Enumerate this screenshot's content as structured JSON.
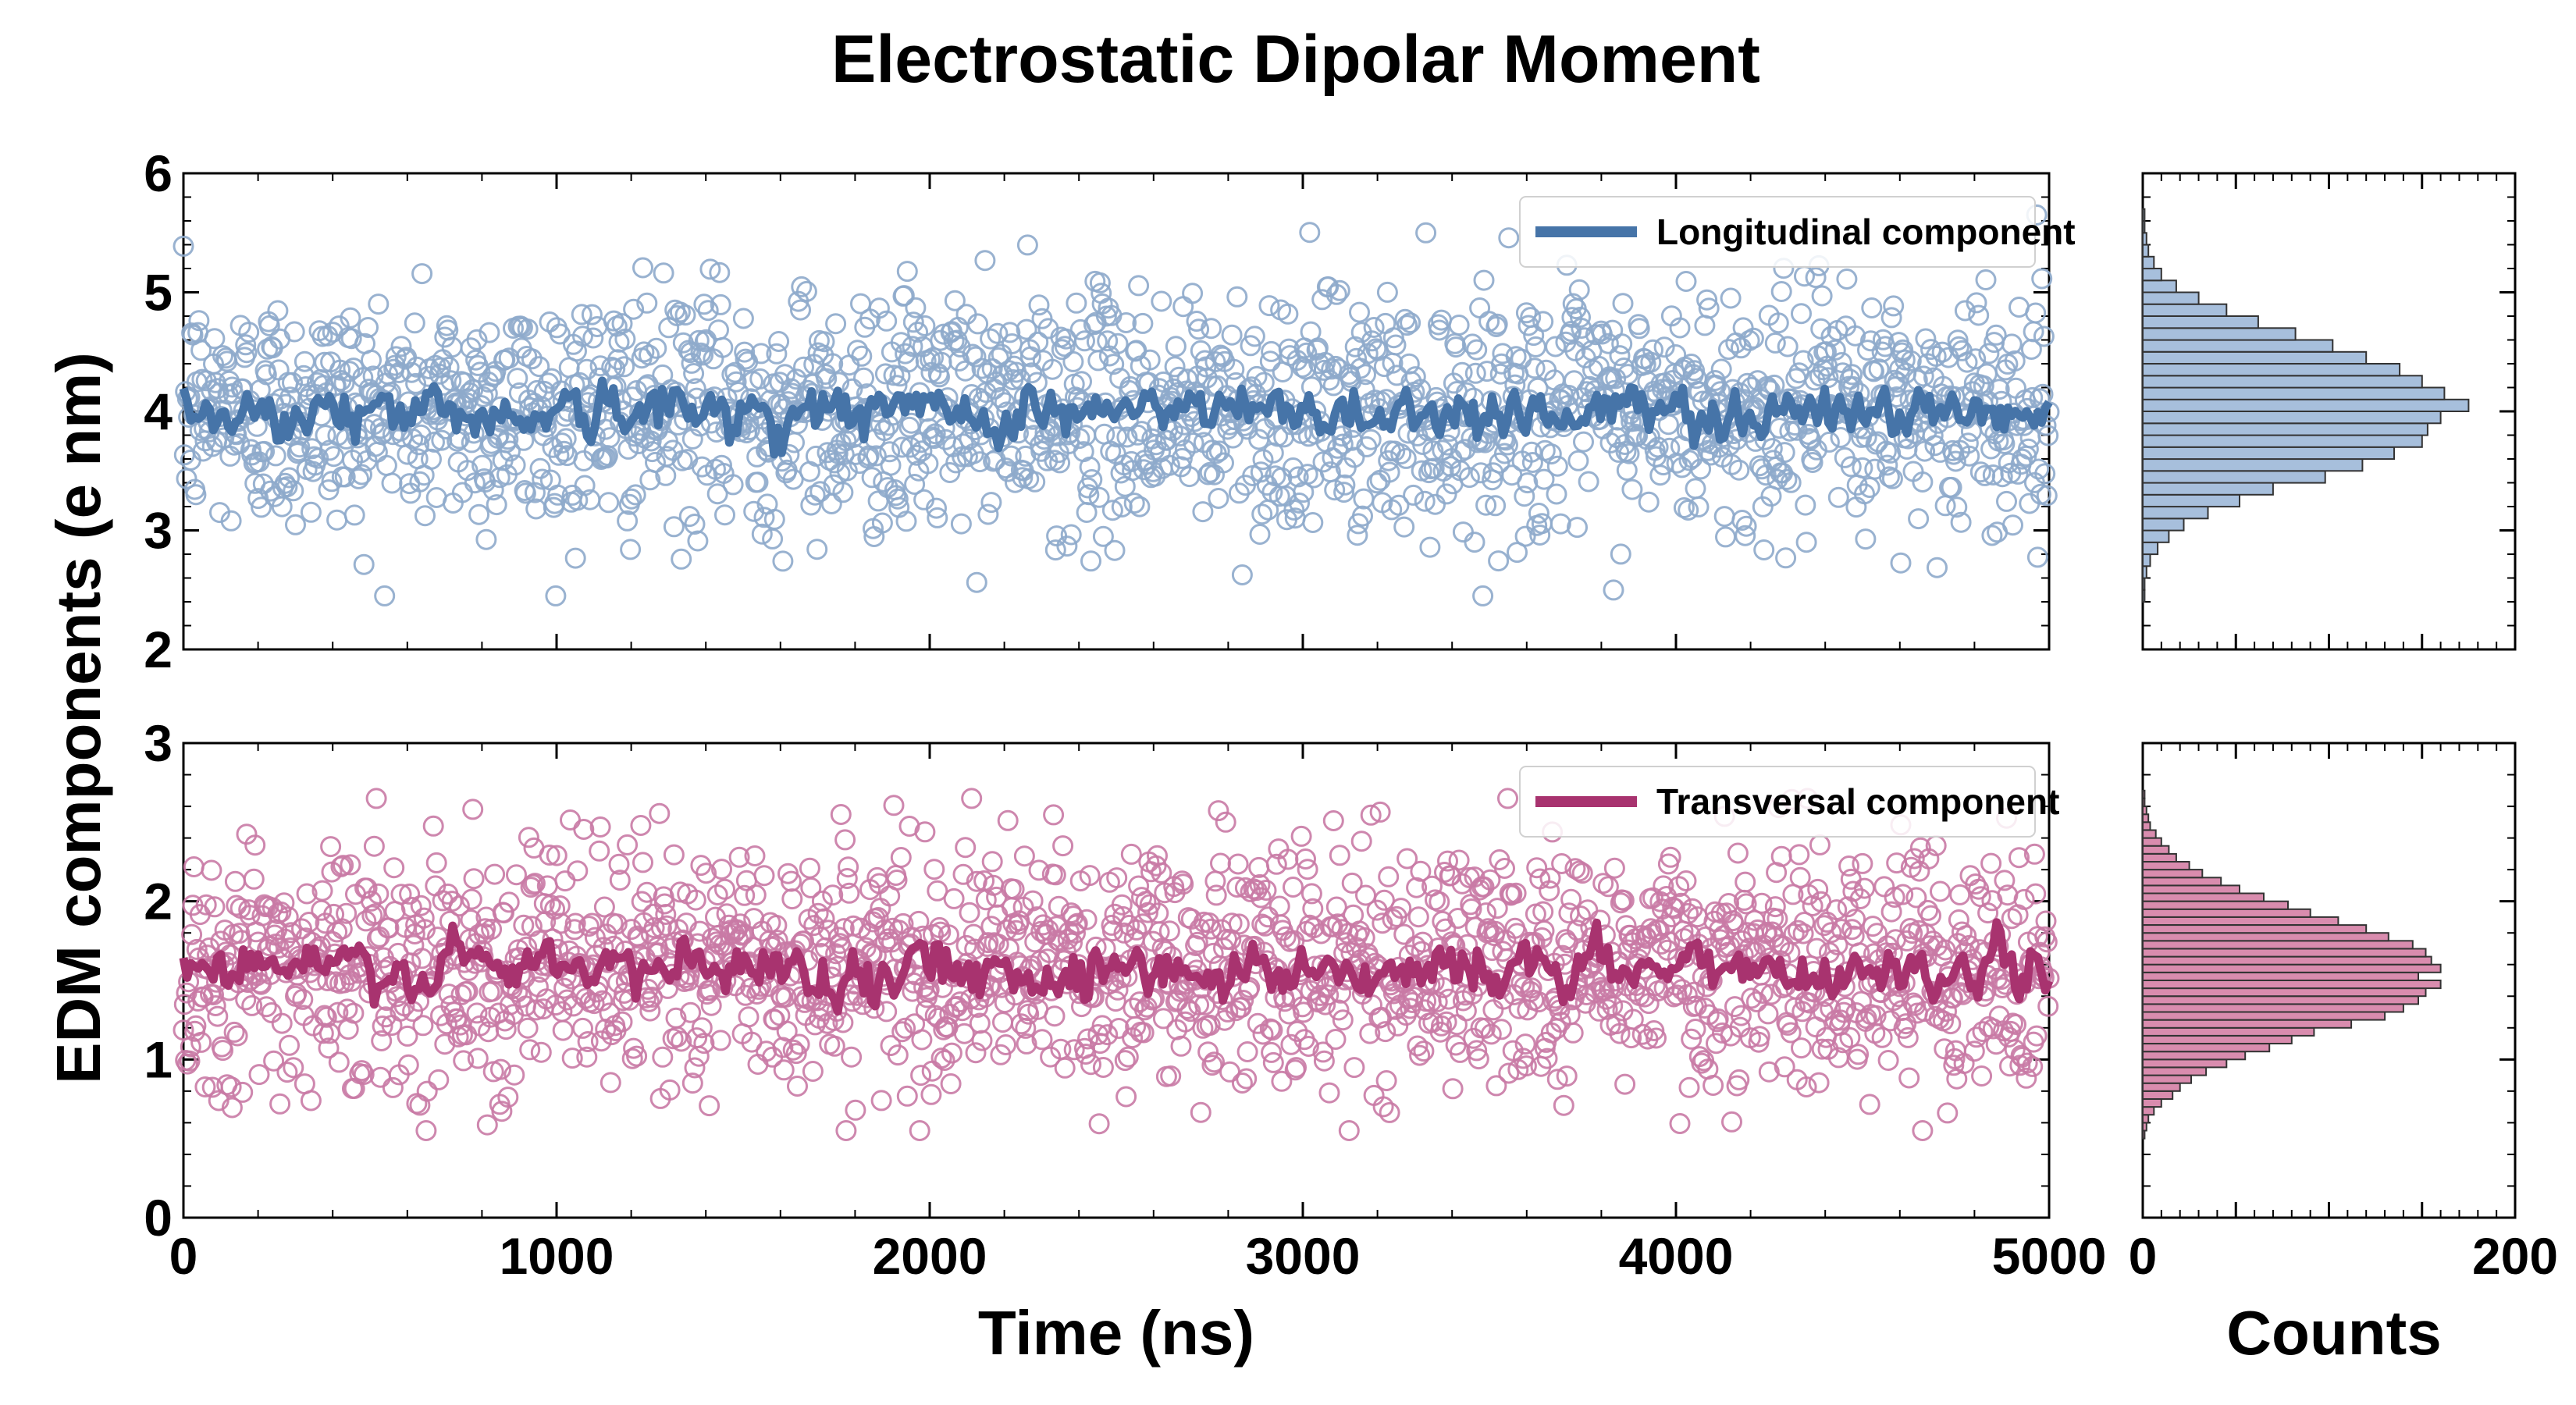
{
  "title": "Electrostatic Dipolar Moment",
  "ylabel": "EDM components (e nm)",
  "colors": {
    "longitudinal": "#4674a8",
    "longitudinal_light": "#8eaacb",
    "transversal": "#a8336f",
    "transversal_light": "#c97aa5",
    "hist_longitudinal": "#a7bfdc",
    "hist_transversal": "#d98cae"
  },
  "chart_data": [
    {
      "type": "scatter",
      "panel": "top-time-series",
      "xlabel": "",
      "xlim": [
        0,
        5000
      ],
      "ylim": [
        2,
        6
      ],
      "y_ticks": [
        2,
        3,
        4,
        5,
        6
      ],
      "x_ticks": [
        0,
        1000,
        2000,
        3000,
        4000,
        5000
      ],
      "grid": false,
      "legend_position": "top-right",
      "series": [
        {
          "name": "Longitudinal component",
          "kind": "scatter-points",
          "n_points": 1800,
          "mean": 4.0,
          "std": 0.5,
          "min": 2.45,
          "max": 5.65
        },
        {
          "name": "Longitudinal component",
          "kind": "line-running-average",
          "mean": 4.0,
          "range": [
            3.55,
            4.45
          ]
        }
      ]
    },
    {
      "type": "scatter",
      "panel": "bottom-time-series",
      "xlabel": "Time (ns)",
      "xlim": [
        0,
        5000
      ],
      "ylim": [
        0,
        3
      ],
      "y_ticks": [
        0,
        1,
        2,
        3
      ],
      "x_ticks": [
        0,
        1000,
        2000,
        3000,
        4000,
        5000
      ],
      "x_tick_labels": [
        "0",
        "1000",
        "2000",
        "3000",
        "4000",
        "5000"
      ],
      "grid": false,
      "legend_position": "top-right",
      "series": [
        {
          "name": "Transversal component",
          "kind": "scatter-points",
          "n_points": 1800,
          "mean": 1.6,
          "std": 0.38,
          "min": 0.55,
          "max": 2.65
        },
        {
          "name": "Transversal component",
          "kind": "line-running-average",
          "mean": 1.57,
          "range": [
            1.3,
            2.0
          ]
        }
      ]
    },
    {
      "type": "bar",
      "panel": "top-histogram",
      "orientation": "horizontal",
      "xlim": [
        0,
        200
      ],
      "ylim": [
        2,
        6
      ],
      "bin_edges": [
        2.0,
        2.1,
        2.2,
        2.3,
        2.4,
        2.5,
        2.6,
        2.7,
        2.8,
        2.9,
        3.0,
        3.1,
        3.2,
        3.3,
        3.4,
        3.5,
        3.6,
        3.7,
        3.8,
        3.9,
        4.0,
        4.1,
        4.2,
        4.3,
        4.4,
        4.5,
        4.6,
        4.7,
        4.8,
        4.9,
        5.0,
        5.1,
        5.2,
        5.3,
        5.4,
        5.5,
        5.6,
        5.7
      ],
      "counts": [
        0,
        0,
        0,
        0,
        1,
        1,
        2,
        4,
        8,
        14,
        22,
        35,
        52,
        70,
        98,
        118,
        135,
        150,
        153,
        160,
        175,
        162,
        150,
        138,
        120,
        102,
        82,
        62,
        45,
        30,
        18,
        10,
        6,
        3,
        2,
        1,
        1
      ]
    },
    {
      "type": "bar",
      "panel": "bottom-histogram",
      "orientation": "horizontal",
      "xlabel": "Counts",
      "xlim": [
        0,
        200
      ],
      "ylim": [
        0,
        3
      ],
      "x_tick_labels": [
        "0",
        "200"
      ],
      "bin_edges": [
        0.5,
        0.55,
        0.6,
        0.65,
        0.7,
        0.75,
        0.8,
        0.85,
        0.9,
        0.95,
        1.0,
        1.05,
        1.1,
        1.15,
        1.2,
        1.25,
        1.3,
        1.35,
        1.4,
        1.45,
        1.5,
        1.55,
        1.6,
        1.65,
        1.7,
        1.75,
        1.8,
        1.85,
        1.9,
        1.95,
        2.0,
        2.05,
        2.1,
        2.15,
        2.2,
        2.25,
        2.3,
        2.35,
        2.4,
        2.45,
        2.5,
        2.55,
        2.6,
        2.65,
        2.7
      ],
      "counts": [
        1,
        2,
        3,
        6,
        10,
        16,
        20,
        26,
        34,
        45,
        55,
        68,
        80,
        92,
        112,
        130,
        140,
        148,
        152,
        160,
        148,
        160,
        155,
        152,
        145,
        132,
        120,
        105,
        90,
        78,
        65,
        52,
        42,
        32,
        25,
        18,
        14,
        10,
        7,
        4,
        3,
        2,
        1,
        1
      ]
    }
  ],
  "legend": {
    "top": "Longitudinal component",
    "bottom": "Transversal component"
  }
}
